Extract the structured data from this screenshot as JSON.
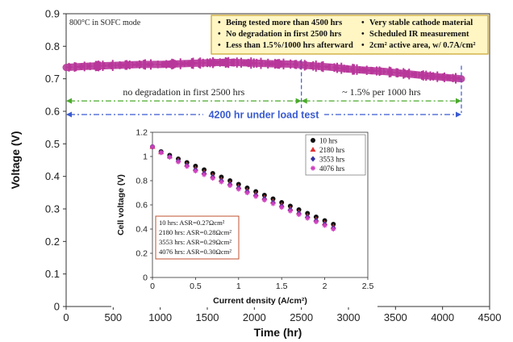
{
  "chart_data": [
    {
      "type": "line",
      "xlabel": "Time (hr)",
      "ylabel": "Voltage (V)",
      "xlim": [
        0,
        4500
      ],
      "ylim": [
        0,
        0.9
      ],
      "xticks": [
        "0",
        "500",
        "1000",
        "1500",
        "2000",
        "2500",
        "3000",
        "3500",
        "4000",
        "4500"
      ],
      "yticks": [
        "0",
        "0.1",
        "0.2",
        "0.3",
        "0.4",
        "0.5",
        "0.6",
        "0.7",
        "0.8",
        "0.9"
      ],
      "grid": false,
      "series_color": "#b8379a",
      "x": [
        0,
        200,
        400,
        600,
        800,
        1000,
        1200,
        1400,
        1600,
        1800,
        2000,
        2200,
        2400,
        2600,
        2800,
        3000,
        3200,
        3400,
        3600,
        3800,
        4000,
        4200
      ],
      "y": [
        0.735,
        0.738,
        0.74,
        0.742,
        0.744,
        0.744,
        0.746,
        0.748,
        0.75,
        0.75,
        0.748,
        0.746,
        0.745,
        0.74,
        0.736,
        0.73,
        0.726,
        0.722,
        0.716,
        0.71,
        0.705,
        0.7
      ],
      "corner_note": "800°C in SOFC mode",
      "info_box": {
        "left": [
          "Being tested more than 4500 hrs",
          "No degradation in first 2500 hrs",
          "Less than 1.5%/1000 hrs afterward"
        ],
        "right": [
          "Very stable cathode material",
          "Scheduled IR measurement",
          "2cm² active area, w/ 0.7A/cm²"
        ],
        "bullet": "•",
        "border_color": "#c9a227",
        "fill_color": "#fff6c4"
      },
      "annotations": {
        "seg1_label": "no degradation in first 2500 hrs",
        "seg1_range": [
          0,
          2500
        ],
        "seg2_label": "~ 1.5% per 1000 hrs",
        "seg2_range": [
          2500,
          4200
        ],
        "seg_y": 0.632,
        "seg_color": "#4aaa2a",
        "total_label": "4200 hr under load test",
        "total_range": [
          0,
          4200
        ],
        "total_y": 0.59,
        "total_color": "#3a5bd0",
        "divider_x": 2500,
        "end_x": 4200
      }
    },
    {
      "type": "scatter",
      "xlabel": "Current density (A/cm²)",
      "ylabel": "Cell voltage (V)",
      "xlim": [
        0,
        2.5
      ],
      "ylim": [
        0,
        1.2
      ],
      "xticks": [
        "0",
        "0.5",
        "1",
        "1.5",
        "2",
        "2.5"
      ],
      "yticks": [
        "0",
        "0.2",
        "0.4",
        "0.6",
        "0.8",
        "1",
        "1.2"
      ],
      "legend_position": "top-right",
      "series": [
        {
          "name": "10 hrs",
          "color": "#111111",
          "marker": "circle",
          "offset": 0.0,
          "asr": "10 hrs: ASR=0.27Ωcm²"
        },
        {
          "name": "2180 hrs",
          "color": "#e03030",
          "marker": "triangle",
          "offset": -0.02,
          "asr": "2180 hrs: ASR=0.28Ωcm²"
        },
        {
          "name": "3553 hrs",
          "color": "#3030a0",
          "marker": "diamond",
          "offset": -0.03,
          "asr": "3553 hrs: ASR=0.29Ωcm²"
        },
        {
          "name": "4076 hrs",
          "color": "#d040c0",
          "marker": "star",
          "offset": -0.04,
          "asr": "4076 hrs: ASR=0.30Ωcm²"
        }
      ],
      "x": [
        0.0,
        0.1,
        0.2,
        0.3,
        0.4,
        0.5,
        0.6,
        0.7,
        0.8,
        0.9,
        1.0,
        1.1,
        1.2,
        1.3,
        1.4,
        1.5,
        1.6,
        1.7,
        1.8,
        1.9,
        2.0,
        2.1
      ],
      "y_base": [
        1.08,
        1.04,
        1.01,
        0.98,
        0.95,
        0.92,
        0.89,
        0.86,
        0.83,
        0.8,
        0.77,
        0.74,
        0.71,
        0.68,
        0.65,
        0.62,
        0.59,
        0.56,
        0.53,
        0.5,
        0.47,
        0.44
      ],
      "asr_box_border": "#c05030"
    }
  ]
}
